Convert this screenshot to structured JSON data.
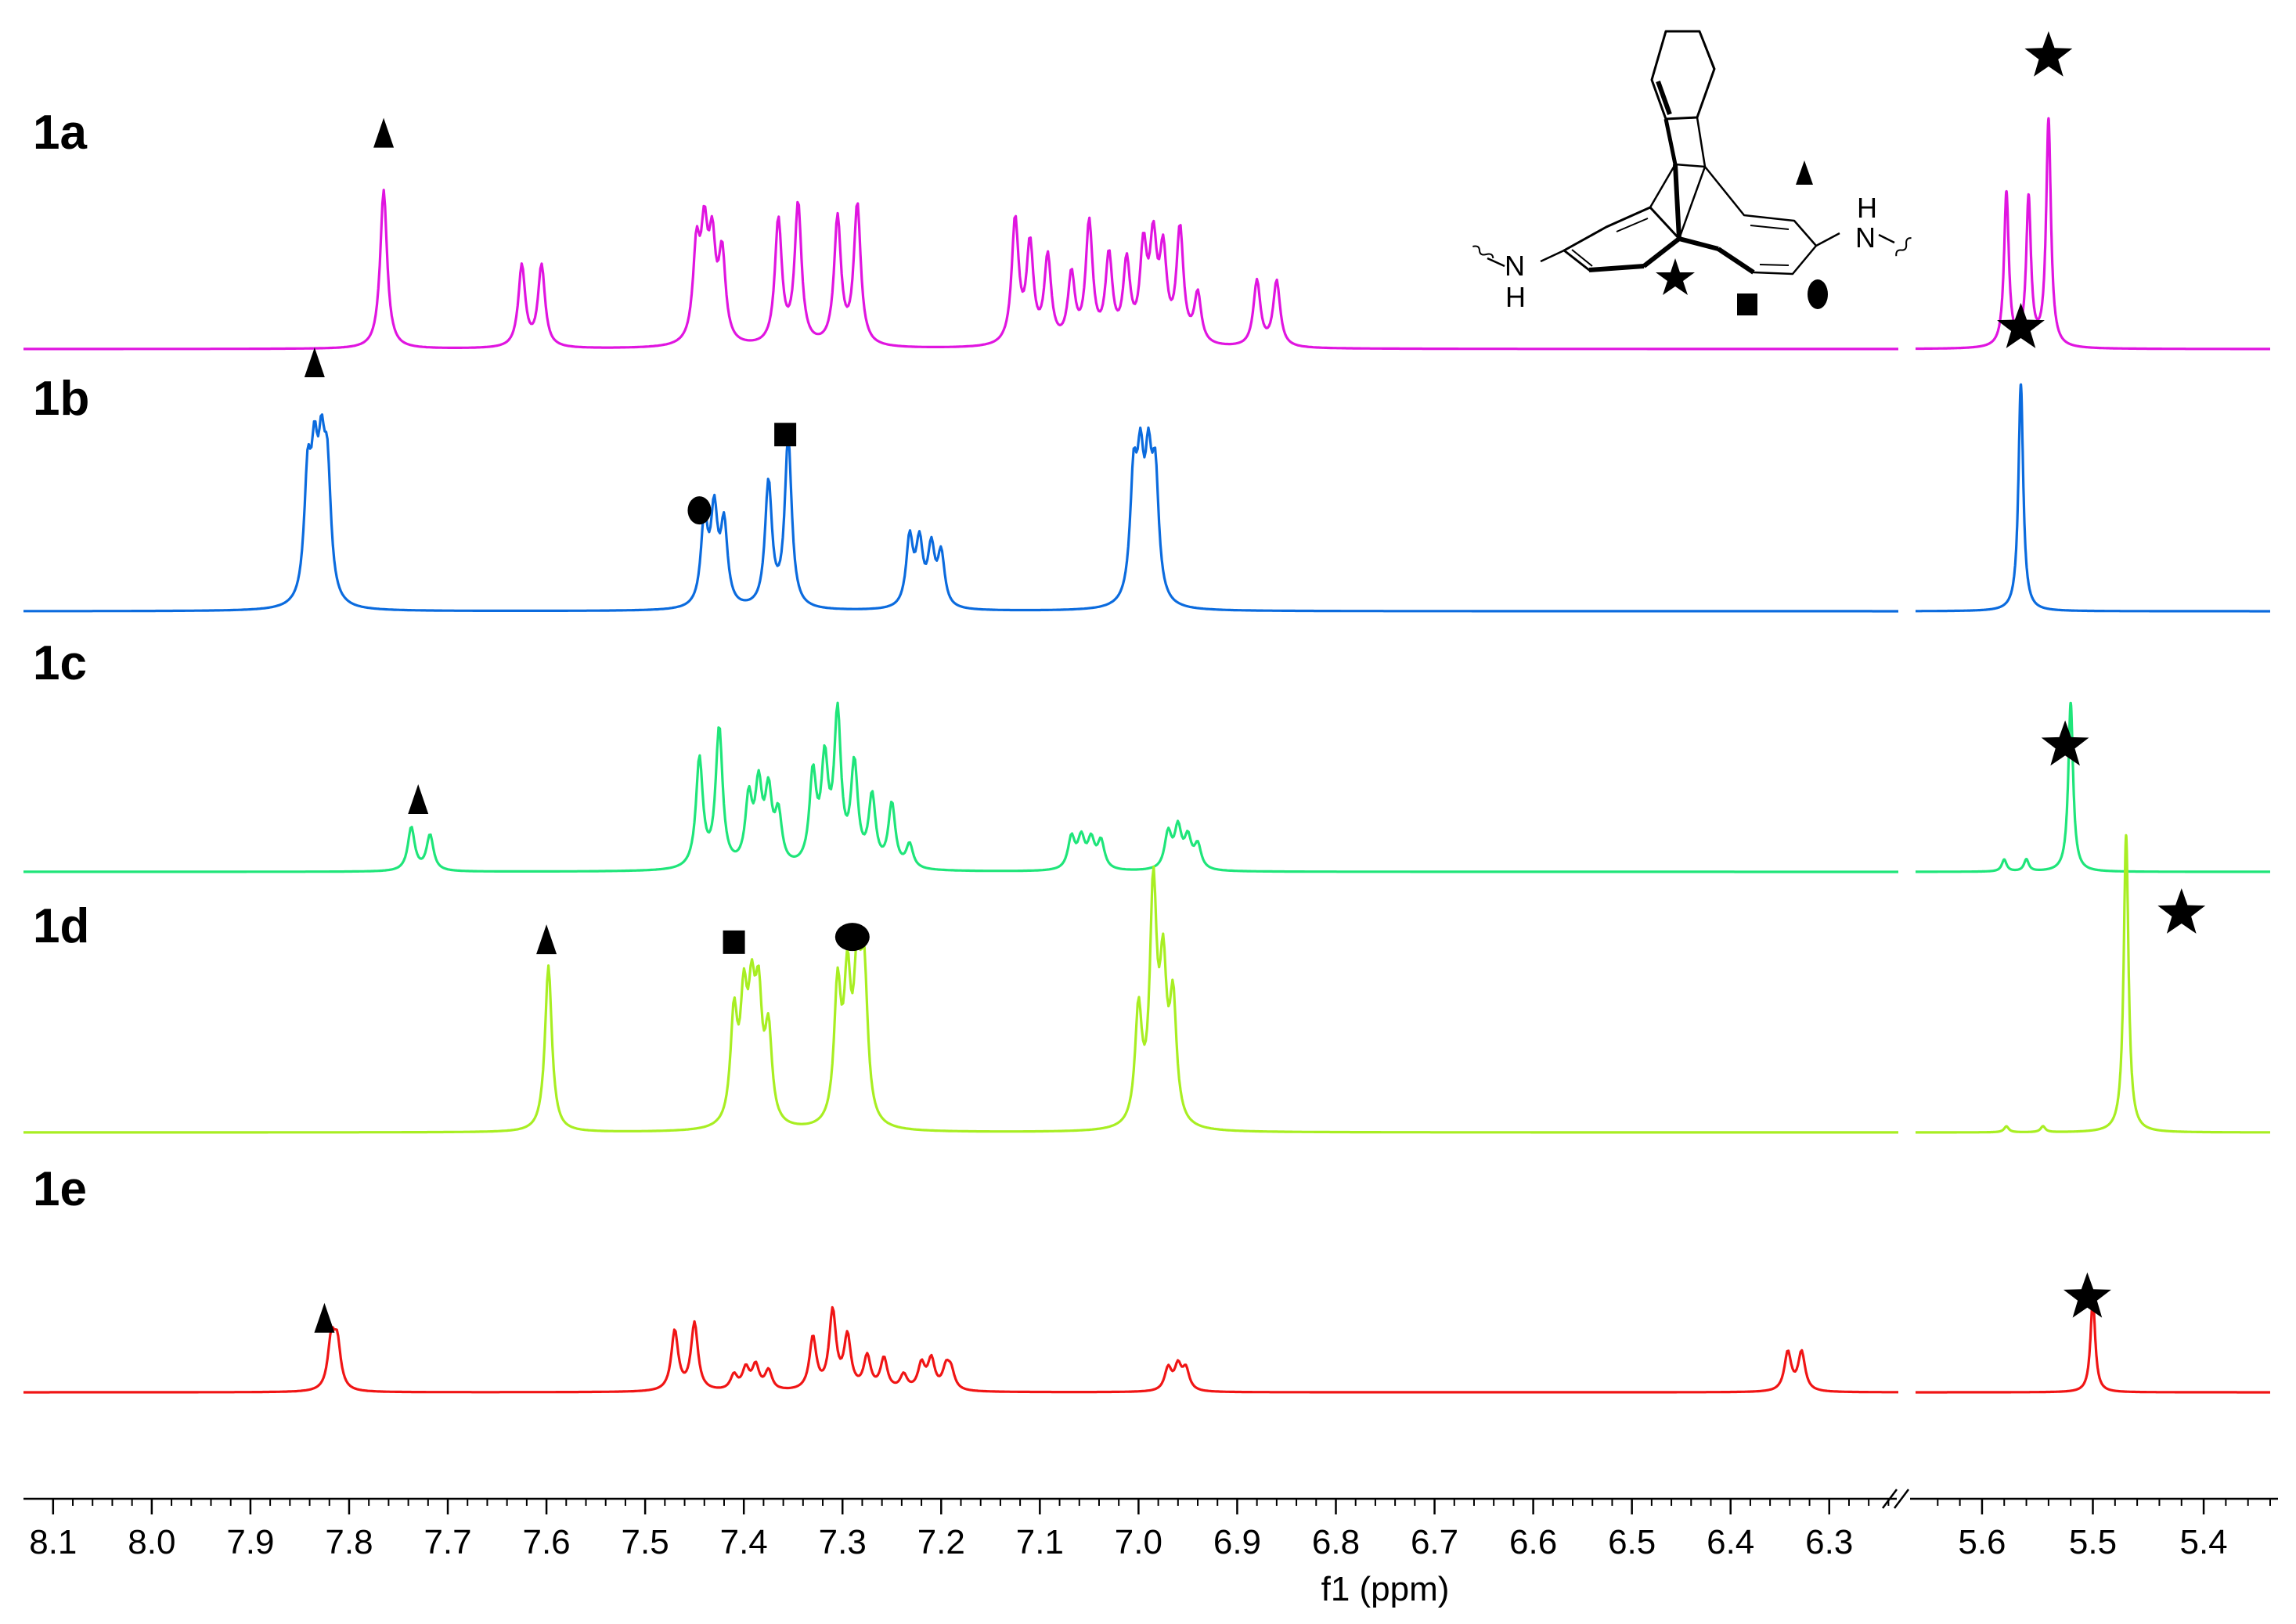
{
  "chart_data": {
    "type": "line",
    "xlabel": "f1 (ppm)",
    "x_axis_reversed": true,
    "x_axis_break": [
      6.23,
      5.66
    ],
    "xlim_left_segment": [
      8.13,
      6.23
    ],
    "xlim_right_segment": [
      5.66,
      5.34
    ],
    "xticks": [
      "8.1",
      "8.0",
      "7.9",
      "7.8",
      "7.7",
      "7.6",
      "7.5",
      "7.4",
      "7.3",
      "7.2",
      "7.1",
      "7.0",
      "6.9",
      "6.8",
      "6.7",
      "6.6",
      "6.5",
      "6.4",
      "6.3",
      "5.6",
      "5.5",
      "5.4"
    ],
    "legend": "none",
    "grid": false,
    "series": [
      {
        "name": "1a",
        "color": "#e015e0",
        "peaks": [
          [
            7.765,
            0.7
          ],
          [
            7.625,
            0.36
          ],
          [
            7.605,
            0.36
          ],
          [
            7.448,
            0.4
          ],
          [
            7.44,
            0.44
          ],
          [
            7.432,
            0.4
          ],
          [
            7.422,
            0.38
          ],
          [
            7.365,
            0.55
          ],
          [
            7.345,
            0.62
          ],
          [
            7.305,
            0.56
          ],
          [
            7.285,
            0.62
          ],
          [
            7.125,
            0.55
          ],
          [
            7.11,
            0.43
          ],
          [
            7.092,
            0.38
          ],
          [
            7.068,
            0.3
          ],
          [
            7.05,
            0.53
          ],
          [
            7.03,
            0.38
          ],
          [
            7.012,
            0.35
          ],
          [
            6.995,
            0.4
          ],
          [
            6.985,
            0.42
          ],
          [
            6.975,
            0.38
          ],
          [
            6.958,
            0.5
          ],
          [
            6.94,
            0.22
          ],
          [
            6.88,
            0.29
          ],
          [
            6.86,
            0.29
          ],
          [
            5.578,
            0.68
          ],
          [
            5.558,
            0.65
          ],
          [
            5.54,
            1.0
          ]
        ],
        "markers": [
          {
            "symbol": "triangle",
            "ppm": 7.765
          },
          {
            "symbol": "star",
            "ppm": 5.54
          }
        ]
      },
      {
        "name": "1b",
        "color": "#0b6bde",
        "peaks": [
          [
            7.842,
            0.52
          ],
          [
            7.835,
            0.52
          ],
          [
            7.828,
            0.52
          ],
          [
            7.822,
            0.52
          ],
          [
            7.44,
            0.37
          ],
          [
            7.43,
            0.4
          ],
          [
            7.42,
            0.35
          ],
          [
            7.375,
            0.55
          ],
          [
            7.355,
            0.75
          ],
          [
            7.232,
            0.3
          ],
          [
            7.222,
            0.27
          ],
          [
            7.21,
            0.25
          ],
          [
            7.2,
            0.23
          ],
          [
            7.005,
            0.52
          ],
          [
            6.998,
            0.52
          ],
          [
            6.99,
            0.52
          ],
          [
            6.983,
            0.52
          ],
          [
            5.565,
            1.0
          ]
        ],
        "markers": [
          {
            "symbol": "triangle",
            "ppm": 7.835
          },
          {
            "symbol": "circle",
            "ppm": 7.445
          },
          {
            "symbol": "square",
            "ppm": 7.358
          },
          {
            "symbol": "star",
            "ppm": 5.565
          }
        ]
      },
      {
        "name": "1c",
        "color": "#1fe57a",
        "peaks": [
          [
            7.737,
            0.22
          ],
          [
            7.718,
            0.18
          ],
          [
            7.445,
            0.55
          ],
          [
            7.425,
            0.7
          ],
          [
            7.395,
            0.33
          ],
          [
            7.385,
            0.38
          ],
          [
            7.375,
            0.35
          ],
          [
            7.365,
            0.25
          ],
          [
            7.33,
            0.45
          ],
          [
            7.318,
            0.5
          ],
          [
            7.305,
            0.75
          ],
          [
            7.288,
            0.5
          ],
          [
            7.27,
            0.35
          ],
          [
            7.25,
            0.32
          ],
          [
            7.232,
            0.12
          ],
          [
            7.068,
            0.16
          ],
          [
            7.058,
            0.15
          ],
          [
            7.048,
            0.14
          ],
          [
            7.038,
            0.14
          ],
          [
            6.97,
            0.18
          ],
          [
            6.96,
            0.2
          ],
          [
            6.95,
            0.15
          ],
          [
            6.94,
            0.12
          ],
          [
            5.58,
            0.06
          ],
          [
            5.56,
            0.06
          ],
          [
            5.52,
            0.85
          ]
        ],
        "markers": [
          {
            "symbol": "triangle",
            "ppm": 7.73
          },
          {
            "symbol": "star",
            "ppm": 5.525
          }
        ]
      },
      {
        "name": "1d",
        "color": "#a8ee22",
        "peaks": [
          [
            7.598,
            0.56
          ],
          [
            7.41,
            0.36
          ],
          [
            7.4,
            0.38
          ],
          [
            7.392,
            0.36
          ],
          [
            7.385,
            0.38
          ],
          [
            7.375,
            0.3
          ],
          [
            7.305,
            0.45
          ],
          [
            7.295,
            0.45
          ],
          [
            7.285,
            0.47
          ],
          [
            7.278,
            0.47
          ],
          [
            7.0,
            0.38
          ],
          [
            6.985,
            0.78
          ],
          [
            6.975,
            0.48
          ],
          [
            6.965,
            0.4
          ],
          [
            5.578,
            0.02
          ],
          [
            5.545,
            0.02
          ],
          [
            5.47,
            1.0
          ]
        ],
        "markers": [
          {
            "symbol": "triangle",
            "ppm": 7.6
          },
          {
            "symbol": "square",
            "ppm": 7.41
          },
          {
            "symbol": "circle",
            "ppm": 7.29
          },
          {
            "symbol": "star",
            "ppm": 5.42
          }
        ]
      },
      {
        "name": "1e",
        "color": "#f01515",
        "peaks": [
          [
            7.818,
            0.33
          ],
          [
            7.812,
            0.3
          ],
          [
            7.47,
            0.4
          ],
          [
            7.45,
            0.45
          ],
          [
            7.41,
            0.1
          ],
          [
            7.398,
            0.14
          ],
          [
            7.388,
            0.16
          ],
          [
            7.375,
            0.13
          ],
          [
            7.33,
            0.35
          ],
          [
            7.31,
            0.52
          ],
          [
            7.295,
            0.35
          ],
          [
            7.275,
            0.22
          ],
          [
            7.258,
            0.21
          ],
          [
            7.238,
            0.1
          ],
          [
            7.22,
            0.17
          ],
          [
            7.21,
            0.2
          ],
          [
            7.195,
            0.14
          ],
          [
            7.19,
            0.12
          ],
          [
            6.97,
            0.15
          ],
          [
            6.96,
            0.16
          ],
          [
            6.952,
            0.14
          ],
          [
            6.342,
            0.26
          ],
          [
            6.328,
            0.26
          ],
          [
            5.5,
            0.62
          ]
        ],
        "markers": [
          {
            "symbol": "triangle",
            "ppm": 7.825
          },
          {
            "symbol": "star",
            "ppm": 5.505
          }
        ]
      }
    ]
  },
  "structure": {
    "nh_left": "N",
    "h_left": "H",
    "nh_right": "N",
    "h_right": "H"
  }
}
